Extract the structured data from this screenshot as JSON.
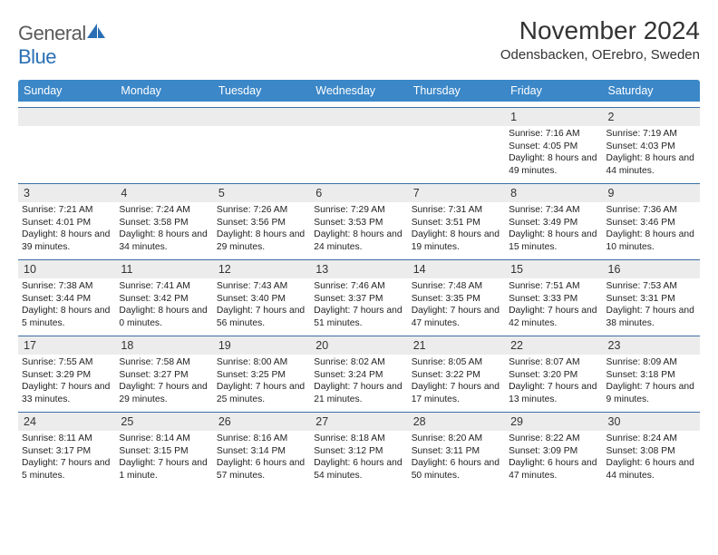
{
  "brand": {
    "general": "General",
    "blue": "Blue"
  },
  "title": "November 2024",
  "location": "Odensbacken, OErebro, Sweden",
  "colors": {
    "header_bg": "#3b87c8",
    "header_text": "#ffffff",
    "daynum_bg": "#ececec",
    "border_top": "#3b6fa5",
    "body_text": "#222222",
    "logo_gray": "#5b5b5b",
    "logo_blue": "#2a6fb5"
  },
  "typography": {
    "title_fontsize": 28,
    "location_fontsize": 15,
    "header_fontsize": 12.5,
    "daynum_fontsize": 12.5,
    "body_fontsize": 10.3
  },
  "weekdays": [
    "Sunday",
    "Monday",
    "Tuesday",
    "Wednesday",
    "Thursday",
    "Friday",
    "Saturday"
  ],
  "weeks": [
    [
      {
        "n": "",
        "sunrise": "",
        "sunset": "",
        "daylight": ""
      },
      {
        "n": "",
        "sunrise": "",
        "sunset": "",
        "daylight": ""
      },
      {
        "n": "",
        "sunrise": "",
        "sunset": "",
        "daylight": ""
      },
      {
        "n": "",
        "sunrise": "",
        "sunset": "",
        "daylight": ""
      },
      {
        "n": "",
        "sunrise": "",
        "sunset": "",
        "daylight": ""
      },
      {
        "n": "1",
        "sunrise": "Sunrise: 7:16 AM",
        "sunset": "Sunset: 4:05 PM",
        "daylight": "Daylight: 8 hours and 49 minutes."
      },
      {
        "n": "2",
        "sunrise": "Sunrise: 7:19 AM",
        "sunset": "Sunset: 4:03 PM",
        "daylight": "Daylight: 8 hours and 44 minutes."
      }
    ],
    [
      {
        "n": "3",
        "sunrise": "Sunrise: 7:21 AM",
        "sunset": "Sunset: 4:01 PM",
        "daylight": "Daylight: 8 hours and 39 minutes."
      },
      {
        "n": "4",
        "sunrise": "Sunrise: 7:24 AM",
        "sunset": "Sunset: 3:58 PM",
        "daylight": "Daylight: 8 hours and 34 minutes."
      },
      {
        "n": "5",
        "sunrise": "Sunrise: 7:26 AM",
        "sunset": "Sunset: 3:56 PM",
        "daylight": "Daylight: 8 hours and 29 minutes."
      },
      {
        "n": "6",
        "sunrise": "Sunrise: 7:29 AM",
        "sunset": "Sunset: 3:53 PM",
        "daylight": "Daylight: 8 hours and 24 minutes."
      },
      {
        "n": "7",
        "sunrise": "Sunrise: 7:31 AM",
        "sunset": "Sunset: 3:51 PM",
        "daylight": "Daylight: 8 hours and 19 minutes."
      },
      {
        "n": "8",
        "sunrise": "Sunrise: 7:34 AM",
        "sunset": "Sunset: 3:49 PM",
        "daylight": "Daylight: 8 hours and 15 minutes."
      },
      {
        "n": "9",
        "sunrise": "Sunrise: 7:36 AM",
        "sunset": "Sunset: 3:46 PM",
        "daylight": "Daylight: 8 hours and 10 minutes."
      }
    ],
    [
      {
        "n": "10",
        "sunrise": "Sunrise: 7:38 AM",
        "sunset": "Sunset: 3:44 PM",
        "daylight": "Daylight: 8 hours and 5 minutes."
      },
      {
        "n": "11",
        "sunrise": "Sunrise: 7:41 AM",
        "sunset": "Sunset: 3:42 PM",
        "daylight": "Daylight: 8 hours and 0 minutes."
      },
      {
        "n": "12",
        "sunrise": "Sunrise: 7:43 AM",
        "sunset": "Sunset: 3:40 PM",
        "daylight": "Daylight: 7 hours and 56 minutes."
      },
      {
        "n": "13",
        "sunrise": "Sunrise: 7:46 AM",
        "sunset": "Sunset: 3:37 PM",
        "daylight": "Daylight: 7 hours and 51 minutes."
      },
      {
        "n": "14",
        "sunrise": "Sunrise: 7:48 AM",
        "sunset": "Sunset: 3:35 PM",
        "daylight": "Daylight: 7 hours and 47 minutes."
      },
      {
        "n": "15",
        "sunrise": "Sunrise: 7:51 AM",
        "sunset": "Sunset: 3:33 PM",
        "daylight": "Daylight: 7 hours and 42 minutes."
      },
      {
        "n": "16",
        "sunrise": "Sunrise: 7:53 AM",
        "sunset": "Sunset: 3:31 PM",
        "daylight": "Daylight: 7 hours and 38 minutes."
      }
    ],
    [
      {
        "n": "17",
        "sunrise": "Sunrise: 7:55 AM",
        "sunset": "Sunset: 3:29 PM",
        "daylight": "Daylight: 7 hours and 33 minutes."
      },
      {
        "n": "18",
        "sunrise": "Sunrise: 7:58 AM",
        "sunset": "Sunset: 3:27 PM",
        "daylight": "Daylight: 7 hours and 29 minutes."
      },
      {
        "n": "19",
        "sunrise": "Sunrise: 8:00 AM",
        "sunset": "Sunset: 3:25 PM",
        "daylight": "Daylight: 7 hours and 25 minutes."
      },
      {
        "n": "20",
        "sunrise": "Sunrise: 8:02 AM",
        "sunset": "Sunset: 3:24 PM",
        "daylight": "Daylight: 7 hours and 21 minutes."
      },
      {
        "n": "21",
        "sunrise": "Sunrise: 8:05 AM",
        "sunset": "Sunset: 3:22 PM",
        "daylight": "Daylight: 7 hours and 17 minutes."
      },
      {
        "n": "22",
        "sunrise": "Sunrise: 8:07 AM",
        "sunset": "Sunset: 3:20 PM",
        "daylight": "Daylight: 7 hours and 13 minutes."
      },
      {
        "n": "23",
        "sunrise": "Sunrise: 8:09 AM",
        "sunset": "Sunset: 3:18 PM",
        "daylight": "Daylight: 7 hours and 9 minutes."
      }
    ],
    [
      {
        "n": "24",
        "sunrise": "Sunrise: 8:11 AM",
        "sunset": "Sunset: 3:17 PM",
        "daylight": "Daylight: 7 hours and 5 minutes."
      },
      {
        "n": "25",
        "sunrise": "Sunrise: 8:14 AM",
        "sunset": "Sunset: 3:15 PM",
        "daylight": "Daylight: 7 hours and 1 minute."
      },
      {
        "n": "26",
        "sunrise": "Sunrise: 8:16 AM",
        "sunset": "Sunset: 3:14 PM",
        "daylight": "Daylight: 6 hours and 57 minutes."
      },
      {
        "n": "27",
        "sunrise": "Sunrise: 8:18 AM",
        "sunset": "Sunset: 3:12 PM",
        "daylight": "Daylight: 6 hours and 54 minutes."
      },
      {
        "n": "28",
        "sunrise": "Sunrise: 8:20 AM",
        "sunset": "Sunset: 3:11 PM",
        "daylight": "Daylight: 6 hours and 50 minutes."
      },
      {
        "n": "29",
        "sunrise": "Sunrise: 8:22 AM",
        "sunset": "Sunset: 3:09 PM",
        "daylight": "Daylight: 6 hours and 47 minutes."
      },
      {
        "n": "30",
        "sunrise": "Sunrise: 8:24 AM",
        "sunset": "Sunset: 3:08 PM",
        "daylight": "Daylight: 6 hours and 44 minutes."
      }
    ]
  ]
}
